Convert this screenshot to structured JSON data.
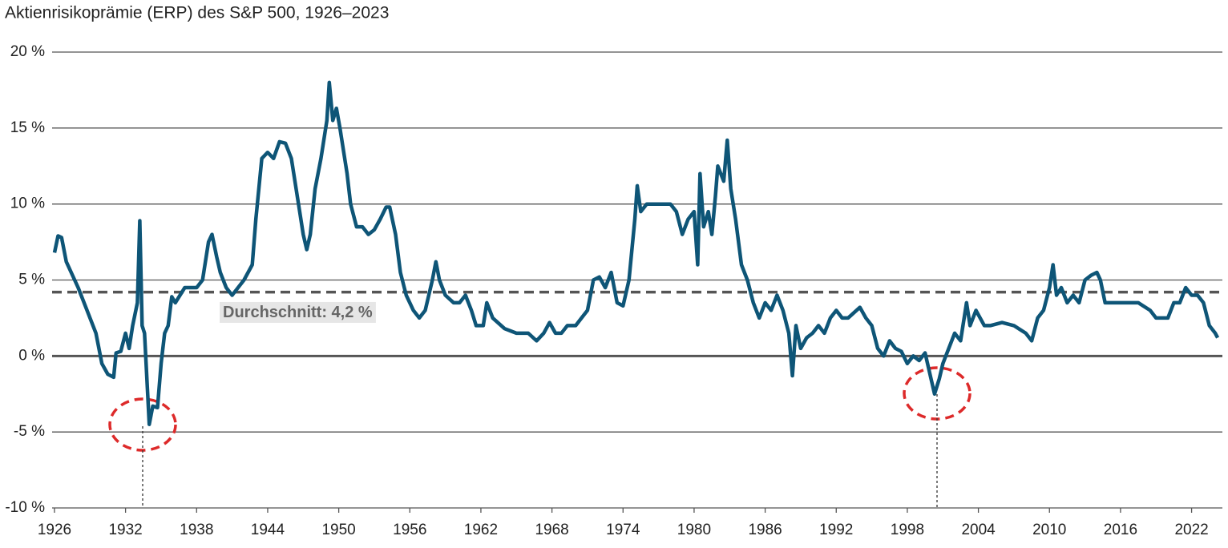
{
  "chart_data": {
    "type": "line",
    "title": "Aktienrisikoprämie (ERP) des S&P 500, 1926–2023",
    "color": "#0e5577",
    "xlim": [
      1925.8,
      2024.6
    ],
    "ylim": [
      -10,
      20
    ],
    "yticks": [
      {
        "value": -10,
        "label": "-10 %"
      },
      {
        "value": -5,
        "label": "-5 %"
      },
      {
        "value": 0,
        "label": "0 %"
      },
      {
        "value": 5,
        "label": "5 %"
      },
      {
        "value": 10,
        "label": "10 %"
      },
      {
        "value": 15,
        "label": "15 %"
      },
      {
        "value": 20,
        "label": "20 %"
      }
    ],
    "xticks": [
      1926,
      1932,
      1938,
      1944,
      1950,
      1956,
      1962,
      1968,
      1974,
      1980,
      1986,
      1992,
      1998,
      2004,
      2010,
      2016,
      2022
    ],
    "grid": true,
    "average": {
      "value": 4.2,
      "label": "Durchschnitt: 4,2 %"
    },
    "x": [
      1926.0,
      1926.3,
      1926.6,
      1927,
      1928,
      1929,
      1929.5,
      1930,
      1930.5,
      1931,
      1931.2,
      1931.6,
      1932,
      1932.3,
      1932.6,
      1933,
      1933.2,
      1933.4,
      1933.6,
      1934,
      1934.3,
      1934.7,
      1935,
      1935.3,
      1935.6,
      1935.9,
      1936.2,
      1937,
      1938,
      1938.5,
      1939,
      1939.3,
      1939.7,
      1940,
      1940.5,
      1941,
      1941.5,
      1942,
      1942.7,
      1943,
      1943.5,
      1944,
      1944.5,
      1945,
      1945.5,
      1946,
      1946.6,
      1947,
      1947.3,
      1947.6,
      1948,
      1948.5,
      1949,
      1949.2,
      1949.5,
      1949.8,
      1950.1,
      1950.7,
      1951,
      1951.5,
      1952,
      1952.5,
      1953,
      1953.5,
      1954,
      1954.3,
      1954.8,
      1955.2,
      1955.7,
      1956.3,
      1956.8,
      1957.3,
      1957.9,
      1958.2,
      1958.5,
      1959,
      1959.7,
      1960.2,
      1960.7,
      1961.2,
      1961.6,
      1962.2,
      1962.5,
      1963,
      1964,
      1965,
      1966,
      1966.7,
      1967.3,
      1967.8,
      1968.3,
      1968.8,
      1969.3,
      1970,
      1970.5,
      1971,
      1971.5,
      1972,
      1972.5,
      1973,
      1973.5,
      1974,
      1974.5,
      1975,
      1975.2,
      1975.5,
      1976,
      1977,
      1978,
      1978.5,
      1979,
      1979.5,
      1980,
      1980.3,
      1980.5,
      1980.8,
      1981.2,
      1981.5,
      1981.8,
      1982,
      1982.5,
      1982.8,
      1983.1,
      1983.5,
      1984,
      1984.5,
      1985,
      1985.5,
      1986,
      1986.5,
      1987,
      1987.5,
      1988,
      1988.3,
      1988.6,
      1989,
      1989.5,
      1990,
      1990.5,
      1991,
      1991.5,
      1992,
      1992.5,
      1993,
      1994,
      1994.5,
      1995,
      1995.5,
      1996,
      1996.5,
      1997,
      1997.5,
      1998,
      1998.5,
      1999,
      1999.5,
      2000,
      2000.3,
      2000.7,
      2001,
      2001.5,
      2002,
      2002.5,
      2003,
      2003.3,
      2003.8,
      2004.5,
      2005,
      2006,
      2007,
      2008,
      2008.5,
      2009,
      2009.5,
      2010,
      2010.3,
      2010.6,
      2011,
      2011.5,
      2012,
      2012.5,
      2013,
      2013.5,
      2014,
      2014.3,
      2014.7,
      2015.5,
      2016.5,
      2017.5,
      2018.5,
      2019,
      2020,
      2020.5,
      2021,
      2021.5,
      2022,
      2022.5,
      2023,
      2023.5,
      2024,
      2024.2
    ],
    "values": [
      6.8,
      7.9,
      7.8,
      6.2,
      4.5,
      2.5,
      1.5,
      -0.5,
      -1.2,
      -1.4,
      0.2,
      0.3,
      1.5,
      0.5,
      2.0,
      3.5,
      8.9,
      2.0,
      1.5,
      -4.5,
      -3.3,
      -3.4,
      -0.5,
      1.5,
      2.0,
      3.9,
      3.5,
      4.5,
      4.5,
      5.0,
      7.5,
      8.0,
      6.5,
      5.5,
      4.5,
      4.0,
      4.5,
      5.0,
      6.0,
      9.0,
      13.0,
      13.4,
      13.0,
      14.1,
      14.0,
      13.0,
      10.0,
      8.0,
      7.0,
      8.0,
      11.0,
      13.0,
      15.5,
      18.0,
      15.5,
      16.3,
      15.0,
      12.0,
      10.0,
      8.5,
      8.5,
      8.0,
      8.3,
      9.0,
      9.8,
      9.8,
      8.0,
      5.5,
      4.0,
      3.0,
      2.5,
      3.0,
      5.0,
      6.2,
      5.0,
      4.0,
      3.5,
      3.5,
      4.0,
      3.0,
      2.0,
      2.0,
      3.5,
      2.5,
      1.8,
      1.5,
      1.5,
      1.0,
      1.5,
      2.2,
      1.5,
      1.5,
      2.0,
      2.0,
      2.5,
      3.0,
      5.0,
      5.2,
      4.5,
      5.5,
      3.5,
      3.3,
      5.0,
      9.0,
      11.2,
      9.5,
      10.0,
      10.0,
      10.0,
      9.5,
      8.0,
      9.0,
      9.5,
      6.0,
      12.0,
      8.5,
      9.5,
      8.0,
      10.5,
      12.5,
      11.5,
      14.2,
      11.0,
      9.0,
      6.0,
      5.0,
      3.5,
      2.5,
      3.5,
      3.0,
      4.0,
      3.0,
      1.5,
      -1.3,
      2.0,
      0.5,
      1.2,
      1.5,
      2.0,
      1.5,
      2.5,
      3.0,
      2.5,
      2.5,
      3.2,
      2.5,
      2.0,
      0.5,
      0.0,
      1.0,
      0.5,
      0.3,
      -0.5,
      0.0,
      -0.3,
      0.2,
      -1.5,
      -2.5,
      -1.5,
      -0.5,
      0.5,
      1.5,
      1.0,
      3.5,
      2.0,
      3.0,
      2.0,
      2.0,
      2.2,
      2.0,
      1.5,
      1.0,
      2.5,
      3.0,
      4.5,
      6.0,
      4.0,
      4.5,
      3.5,
      4.0,
      3.5,
      5.0,
      5.3,
      5.5,
      5.0,
      3.5,
      3.5,
      3.5,
      3.5,
      3.0,
      2.5,
      2.5,
      3.5,
      3.5,
      4.5,
      4.0,
      4.0,
      3.5,
      2.0,
      1.5,
      1.2
    ]
  }
}
